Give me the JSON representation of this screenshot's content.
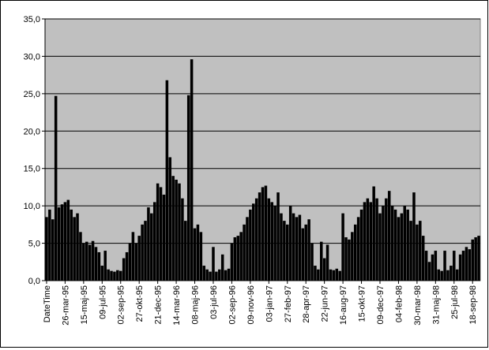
{
  "chart_data": {
    "type": "bar",
    "color": "#000000",
    "plot_color": "#c0c0c0",
    "grid": true,
    "ylim": [
      0,
      35
    ],
    "yticks": [
      {
        "value": 0,
        "label": "0,0"
      },
      {
        "value": 5,
        "label": "5,0"
      },
      {
        "value": 10,
        "label": "10,0"
      },
      {
        "value": 15,
        "label": "15,0"
      },
      {
        "value": 20,
        "label": "20,0"
      },
      {
        "value": 25,
        "label": "25,0"
      },
      {
        "value": 30,
        "label": "30,0"
      },
      {
        "value": 35,
        "label": "35,0"
      }
    ],
    "categories": [
      "DateTime",
      null,
      null,
      null,
      null,
      null,
      "26-mar-95",
      null,
      null,
      null,
      null,
      null,
      "15-maj-95",
      null,
      null,
      null,
      null,
      null,
      "09-jul-95",
      null,
      null,
      null,
      null,
      null,
      "02-sep-95",
      null,
      null,
      null,
      null,
      null,
      "27-okt-95",
      null,
      null,
      null,
      null,
      null,
      "21-dec-95",
      null,
      null,
      null,
      null,
      null,
      "14-mar-96",
      null,
      null,
      null,
      null,
      null,
      "08-maj-96",
      null,
      null,
      null,
      null,
      null,
      "03-jul-96",
      null,
      null,
      null,
      null,
      null,
      "02-sep-96",
      null,
      null,
      null,
      null,
      null,
      "09-nov-96",
      null,
      null,
      null,
      null,
      null,
      "03-jan-97",
      null,
      null,
      null,
      null,
      null,
      "27-feb-97",
      null,
      null,
      null,
      null,
      null,
      "28-apr-97",
      null,
      null,
      null,
      null,
      null,
      "22-jun-97",
      null,
      null,
      null,
      null,
      null,
      "16-aug-97",
      null,
      null,
      null,
      null,
      null,
      "15-okt-97",
      null,
      null,
      null,
      null,
      null,
      "09-dec-97",
      null,
      null,
      null,
      null,
      null,
      "04-feb-98",
      null,
      null,
      null,
      null,
      null,
      "30-mar-98",
      null,
      null,
      null,
      null,
      null,
      "31-maj-98",
      null,
      null,
      null,
      null,
      null,
      "25-jul-98",
      null,
      null,
      null,
      null,
      null,
      "18-sep-98",
      null,
      null
    ],
    "values": [
      8.5,
      9.5,
      8.2,
      24.7,
      9.8,
      10.2,
      10.5,
      10.8,
      9.5,
      8.5,
      9,
      6.5,
      5,
      5.2,
      4.8,
      5.3,
      4.5,
      3.8,
      2,
      4,
      1.5,
      1.3,
      1.2,
      1.4,
      1.3,
      3,
      3.8,
      5,
      6.5,
      5,
      6,
      7.5,
      8,
      9.8,
      9,
      10.5,
      13,
      12.5,
      11.5,
      26.8,
      16.5,
      14,
      13.5,
      13,
      11,
      8,
      24.8,
      29.6,
      7,
      7.5,
      6.5,
      2,
      1.5,
      1.2,
      4.5,
      1.2,
      1.5,
      3.5,
      1.4,
      1.6,
      5,
      5.8,
      6,
      6.5,
      7.5,
      8.5,
      9.5,
      10.3,
      11,
      11.8,
      12.5,
      12.7,
      11,
      10.5,
      10,
      11.8,
      9,
      8,
      7.5,
      10,
      9,
      8.5,
      8.8,
      7,
      7.5,
      8.2,
      5,
      2,
      1.5,
      5.2,
      3,
      4.8,
      1.5,
      1.4,
      1.6,
      1.3,
      9,
      5.8,
      5.5,
      6.5,
      7.5,
      8.5,
      9.5,
      10.5,
      11,
      10.5,
      12.6,
      11,
      9,
      10,
      11,
      12,
      10,
      9.5,
      8.5,
      9,
      10,
      9.5,
      8,
      11.8,
      7.5,
      8,
      6,
      4,
      2.5,
      3.5,
      4,
      1.5,
      1.3,
      4,
      1.4,
      2,
      4,
      1.5,
      3.5,
      4,
      4.5,
      4.2,
      5.5,
      5.8,
      6
    ]
  }
}
